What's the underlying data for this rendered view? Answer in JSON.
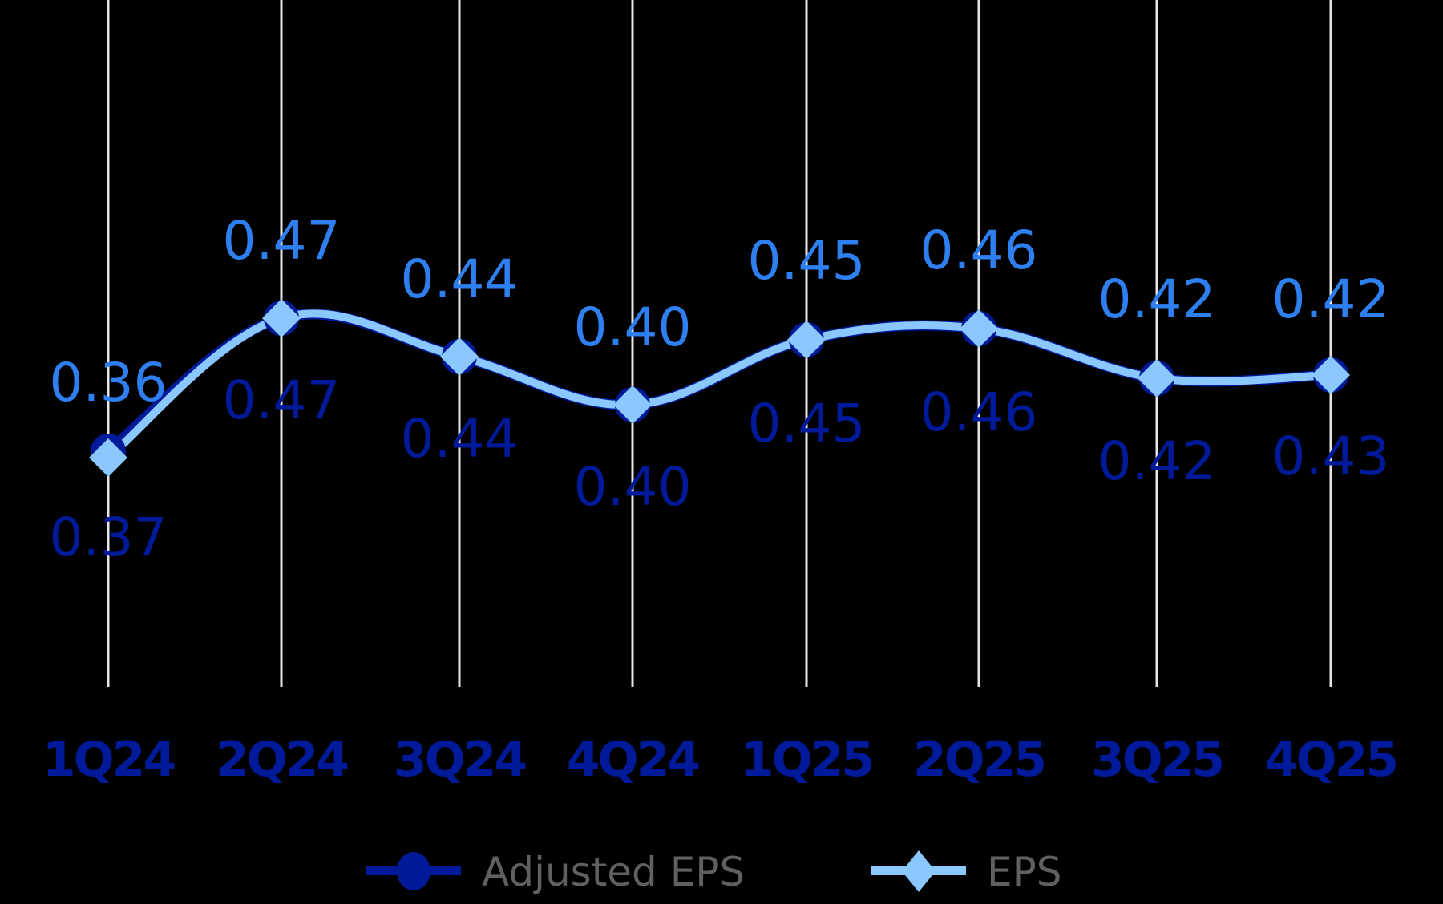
{
  "chart_data": {
    "type": "line",
    "title": "",
    "xlabel": "",
    "ylabel": "",
    "categories": [
      "1Q24",
      "2Q24",
      "3Q24",
      "4Q24",
      "1Q25",
      "2Q25",
      "3Q25",
      "4Q25"
    ],
    "series": [
      {
        "name": "Adjusted EPS",
        "values": [
          0.37,
          0.47,
          0.44,
          0.4,
          0.45,
          0.46,
          0.42,
          0.43
        ],
        "color": "#001a99",
        "marker": "circle",
        "label_position": "below"
      },
      {
        "name": "EPS",
        "values": [
          0.36,
          0.47,
          0.44,
          0.4,
          0.45,
          0.46,
          0.42,
          0.42
        ],
        "color": "#8ac8ff",
        "marker": "diamond",
        "label_position": "above"
      }
    ],
    "label_colors": {
      "Adjusted EPS": "#001a99",
      "EPS": "#2e7ff0"
    },
    "grid": {
      "vertical": true,
      "horizontal": false,
      "color": "#e6e6e6"
    },
    "y_axis_visible": false,
    "legend_position": "bottom",
    "background": "#000000"
  },
  "legend": [
    {
      "label": "Adjusted EPS"
    },
    {
      "label": "EPS"
    }
  ]
}
